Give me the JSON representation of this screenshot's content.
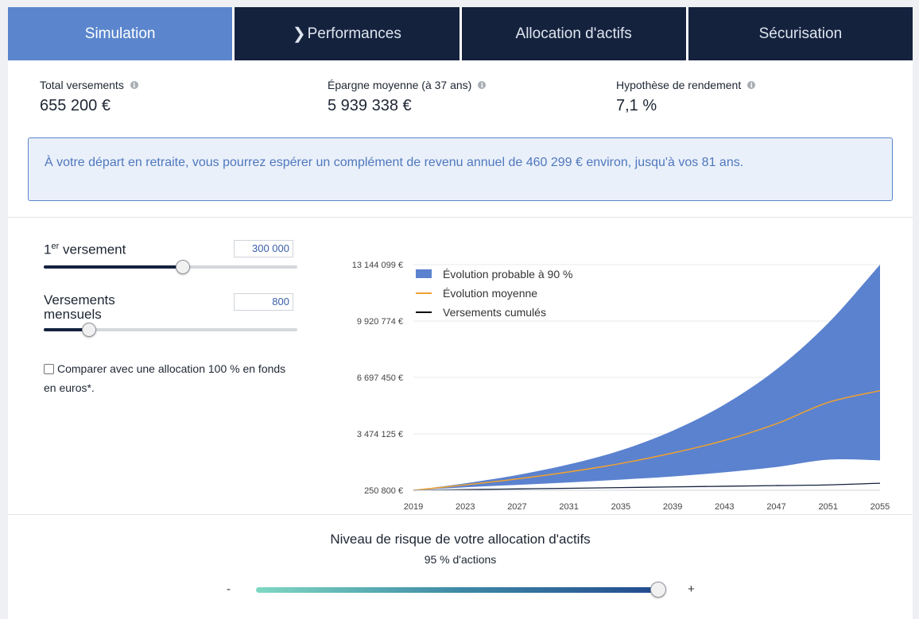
{
  "tabs": [
    {
      "label": "Simulation",
      "active": true
    },
    {
      "label": "Performances",
      "active": false
    },
    {
      "label": "Allocation d'actifs",
      "active": false
    },
    {
      "label": "Sécurisation",
      "active": false
    }
  ],
  "stats": [
    {
      "label": "Total versements",
      "value": "655 200 €"
    },
    {
      "label": "Épargne moyenne (à 37 ans)",
      "value": "5 939 338 €"
    },
    {
      "label": "Hypothèse de rendement",
      "value": "7,1 %"
    }
  ],
  "banner": {
    "text": "À votre départ en retraite, vous pourrez espérer un complément de revenu annuel de 460 299 € environ, jusqu'à vos 81 ans."
  },
  "controls": {
    "first_payment": {
      "label_main": "1",
      "label_sup": "er",
      "label_rest": " versement",
      "value": "300 000",
      "level": 0.55
    },
    "monthly": {
      "label_line1": "Versements",
      "label_line2": "mensuels",
      "value": "800",
      "level": 0.18
    },
    "compare_label": "Comparer avec une allocation 100 % en fonds en euros*.",
    "compare_checked": false
  },
  "chart_data": {
    "type": "area",
    "x": [
      2019,
      2023,
      2027,
      2031,
      2035,
      2039,
      2043,
      2047,
      2051,
      2055
    ],
    "xticks": [
      "2019",
      "2023",
      "2027",
      "2031",
      "2035",
      "2039",
      "2043",
      "2047",
      "2051",
      "2055"
    ],
    "yticks": [
      "13 144 099 €",
      "9 920 774 €",
      "6 697 450 €",
      "3 474 125 €",
      "250 800 €"
    ],
    "ytick_values": [
      13144099,
      9920774,
      6697450,
      3474125,
      250800
    ],
    "ylim": [
      250800,
      13144099
    ],
    "legend": [
      "Évolution probable à 90 %",
      "Évolution moyenne",
      "Versements cumulés"
    ],
    "legend_position": "top-left",
    "colors": {
      "band": "#5b82cf",
      "mean": "#f0a12e",
      "cumulative": "#14223e"
    },
    "series": [
      {
        "name": "Évolution probable à 90 % (haut)",
        "values": [
          250800,
          650000,
          1120000,
          1730000,
          2530000,
          3650000,
          5150000,
          7150000,
          9800000,
          13144099
        ]
      },
      {
        "name": "Évolution probable à 90 % (bas)",
        "values": [
          250800,
          420000,
          560000,
          700000,
          860000,
          1040000,
          1280000,
          1580000,
          2000000,
          1960000
        ]
      },
      {
        "name": "Évolution moyenne",
        "values": [
          250800,
          560000,
          900000,
          1300000,
          1780000,
          2380000,
          3100000,
          4050000,
          5270000,
          5939338
        ]
      },
      {
        "name": "Versements cumulés",
        "values": [
          250800,
          289200,
          327600,
          366000,
          404400,
          442800,
          481200,
          519600,
          558000,
          655200
        ]
      }
    ]
  },
  "risk": {
    "title": "Niveau de risque de votre allocation d'actifs",
    "subtitle": "95 % d'actions",
    "minus": "-",
    "plus": "+",
    "level": 1.0
  }
}
